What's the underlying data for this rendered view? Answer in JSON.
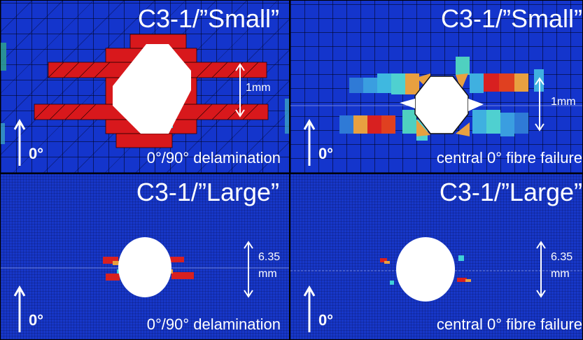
{
  "panels": {
    "top_left": {
      "title": "C3-1/”Small”",
      "caption": "0°/90° delamination",
      "orientation": "0°",
      "dimension": "1mm"
    },
    "top_right": {
      "title": "C3-1/”Small”",
      "caption": "central 0° fibre failure",
      "orientation": "0°",
      "dimension": "1mm"
    },
    "bottom_left": {
      "title": "C3-1/”Large”",
      "caption": "0°/90° delamination",
      "orientation": "0°",
      "dimension_line1": "6.35",
      "dimension_line2": "mm"
    },
    "bottom_right": {
      "title": "C3-1/”Large”",
      "caption": "central 0° fibre failure",
      "orientation": "0°",
      "dimension_line1": "6.35",
      "dimension_line2": "mm"
    }
  },
  "colors": {
    "background_blue": "#1435cc",
    "damage_red": "#d8181c",
    "damage_orange": "#e8a040",
    "damage_cyan": "#3fd0d8",
    "hole_white": "#ffffff",
    "text": "#ffffff"
  }
}
